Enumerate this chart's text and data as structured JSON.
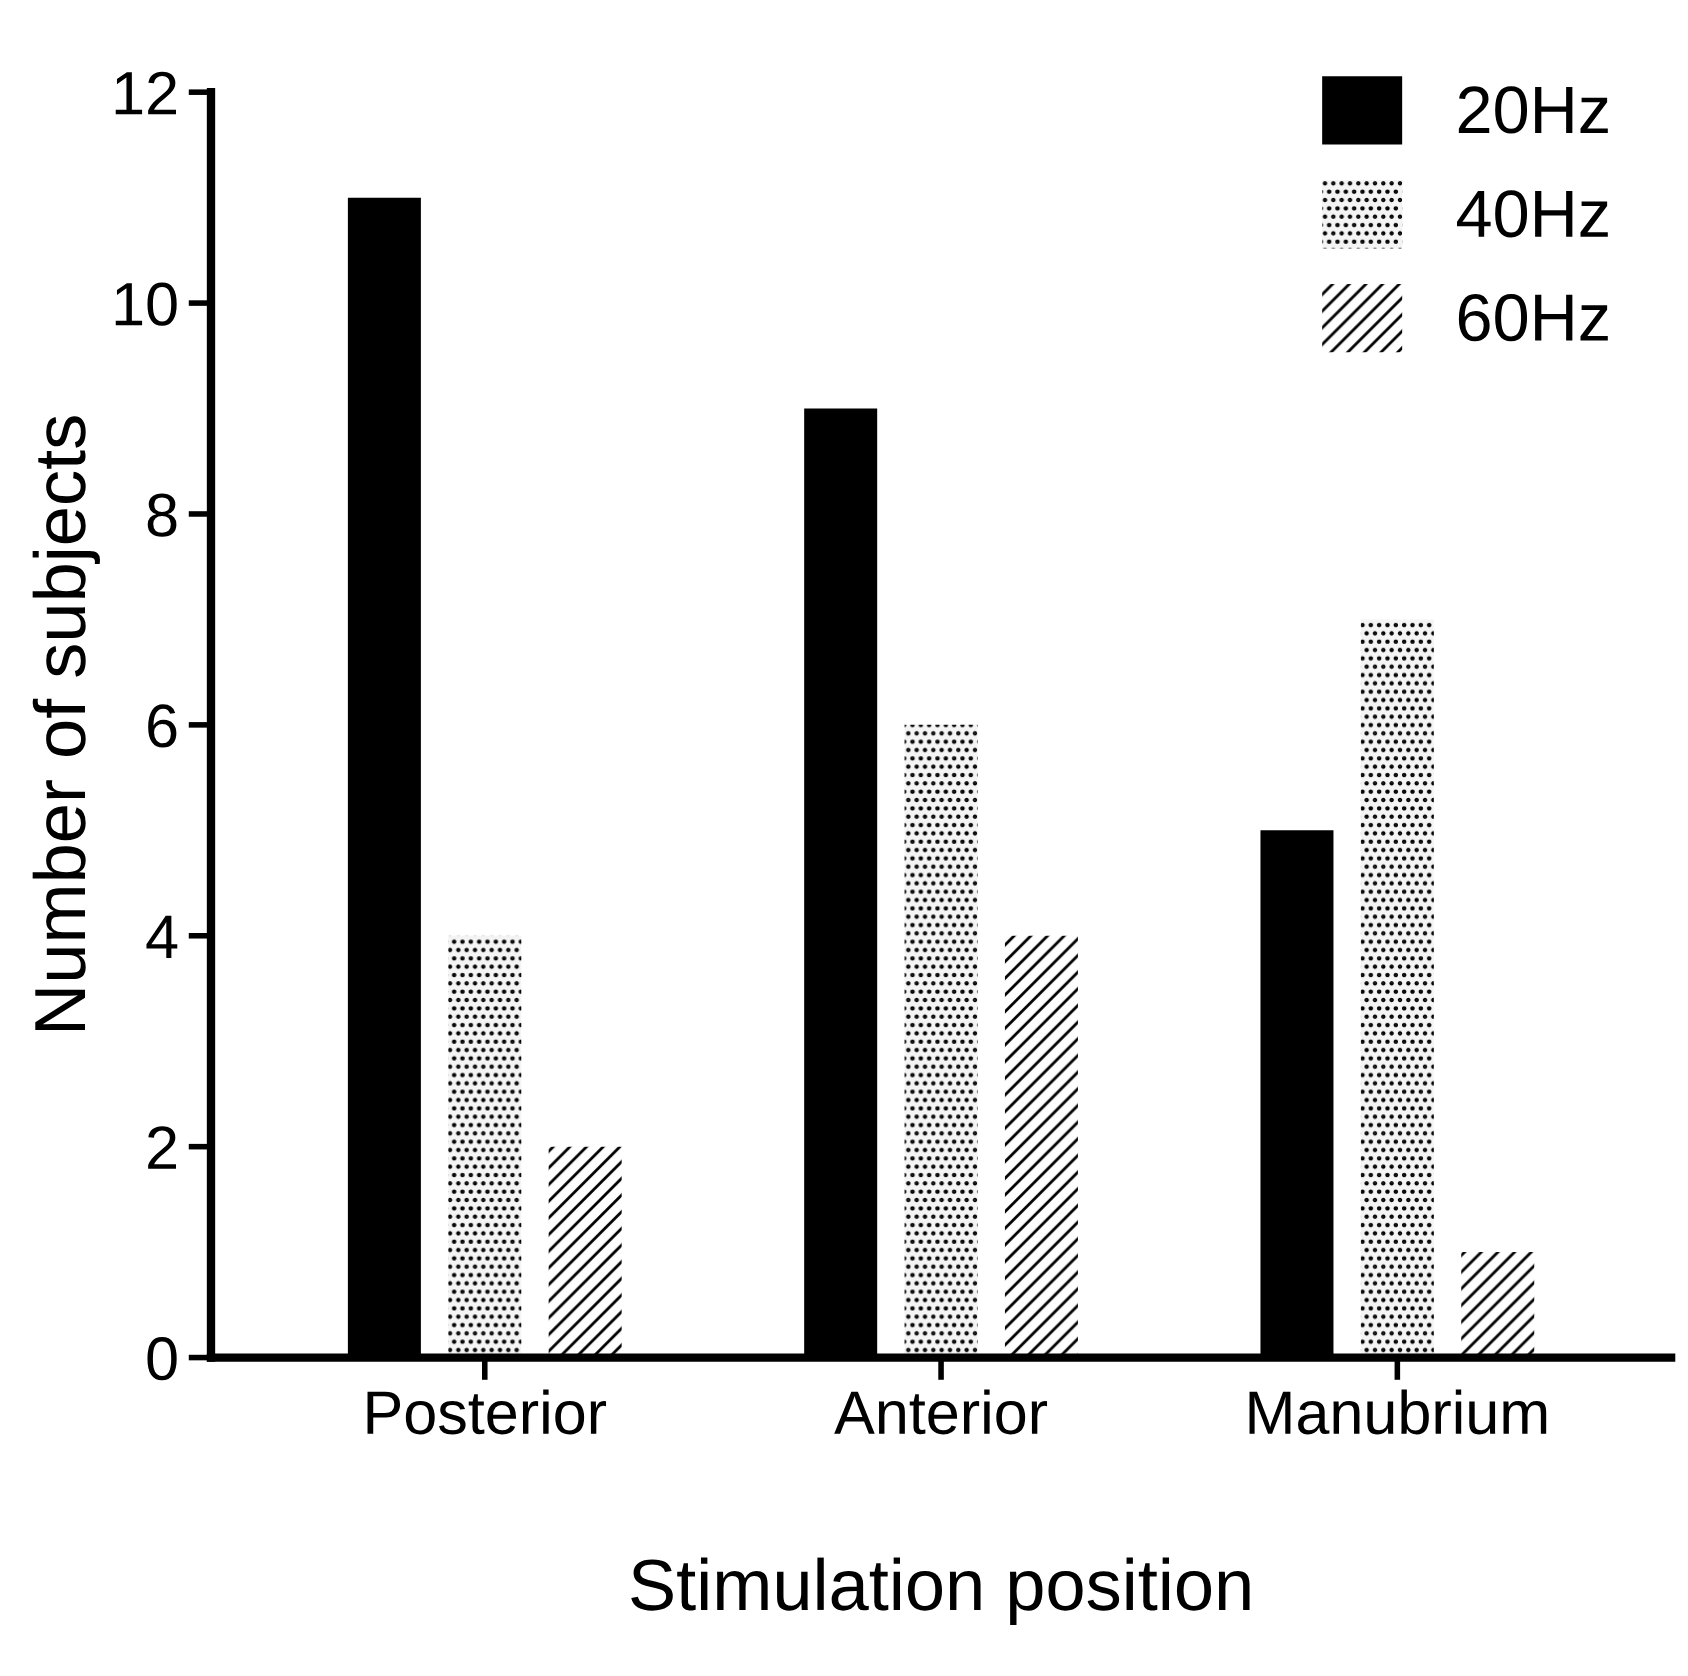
{
  "chart_data": {
    "type": "bar",
    "xlabel": "Stimulation position",
    "ylabel": "Number of subjects",
    "categories": [
      "Posterior",
      "Anterior",
      "Manubrium"
    ],
    "series": [
      {
        "name": "20Hz",
        "color": "#000000",
        "values": [
          11,
          9,
          5
        ]
      },
      {
        "name": "40Hz",
        "color": "#f4f4f4",
        "values": [
          4,
          6,
          7
        ]
      },
      {
        "name": "60Hz",
        "color": "#ffffff",
        "values": [
          2,
          4,
          1
        ]
      }
    ],
    "ylim": [
      0,
      12
    ],
    "yticks": [
      0,
      2,
      4,
      6,
      8,
      10,
      12
    ],
    "grid": false,
    "legend": "top right"
  }
}
